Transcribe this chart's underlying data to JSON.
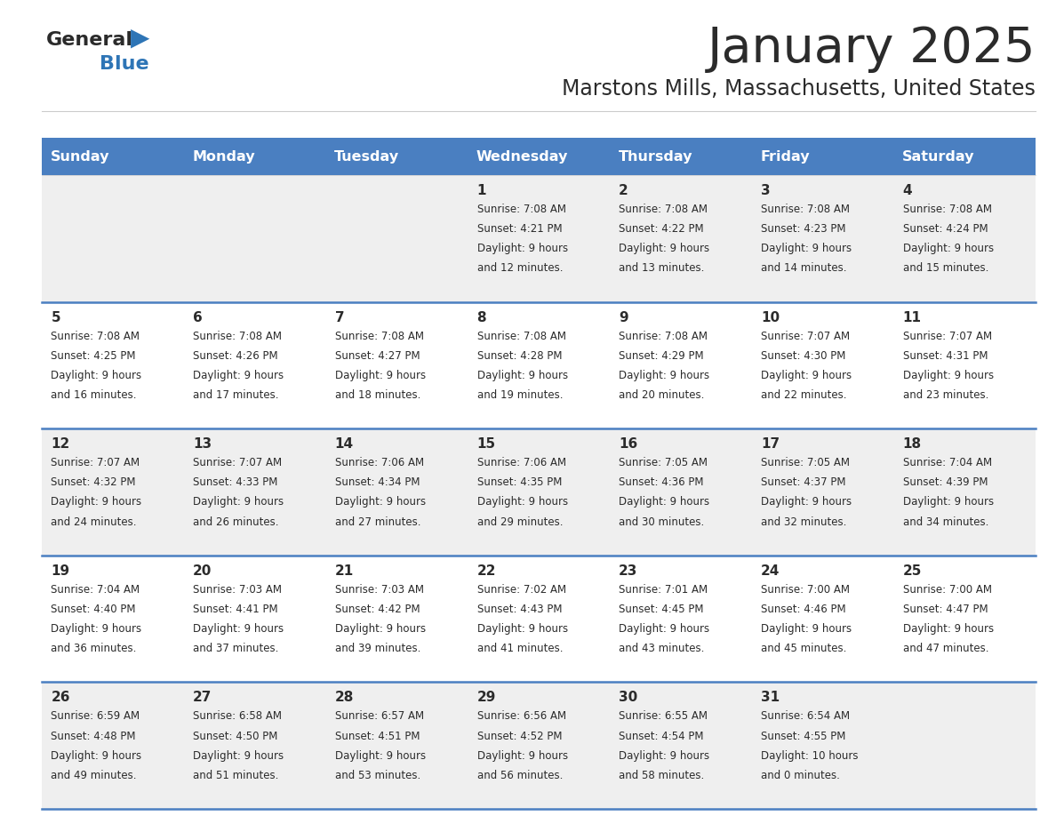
{
  "title": "January 2025",
  "subtitle": "Marstons Mills, Massachusetts, United States",
  "days_of_week": [
    "Sunday",
    "Monday",
    "Tuesday",
    "Wednesday",
    "Thursday",
    "Friday",
    "Saturday"
  ],
  "header_bg": "#4a7fc1",
  "header_text": "#FFFFFF",
  "row_bg_light": "#EFEFEF",
  "row_bg_white": "#FFFFFF",
  "cell_border": "#4a7fc1",
  "title_color": "#2b2b2b",
  "subtitle_color": "#2b2b2b",
  "day_number_color": "#2b2b2b",
  "cell_text_color": "#2b2b2b",
  "logo_general_color": "#2b2b2b",
  "logo_blue_color": "#2E75B6",
  "calendar_data": [
    [
      {
        "day": "",
        "sunrise": "",
        "sunset": "",
        "daylight": ""
      },
      {
        "day": "",
        "sunrise": "",
        "sunset": "",
        "daylight": ""
      },
      {
        "day": "",
        "sunrise": "",
        "sunset": "",
        "daylight": ""
      },
      {
        "day": "1",
        "sunrise": "7:08 AM",
        "sunset": "4:21 PM",
        "daylight": "9 hours",
        "daylight2": "and 12 minutes."
      },
      {
        "day": "2",
        "sunrise": "7:08 AM",
        "sunset": "4:22 PM",
        "daylight": "9 hours",
        "daylight2": "and 13 minutes."
      },
      {
        "day": "3",
        "sunrise": "7:08 AM",
        "sunset": "4:23 PM",
        "daylight": "9 hours",
        "daylight2": "and 14 minutes."
      },
      {
        "day": "4",
        "sunrise": "7:08 AM",
        "sunset": "4:24 PM",
        "daylight": "9 hours",
        "daylight2": "and 15 minutes."
      }
    ],
    [
      {
        "day": "5",
        "sunrise": "7:08 AM",
        "sunset": "4:25 PM",
        "daylight": "9 hours",
        "daylight2": "and 16 minutes."
      },
      {
        "day": "6",
        "sunrise": "7:08 AM",
        "sunset": "4:26 PM",
        "daylight": "9 hours",
        "daylight2": "and 17 minutes."
      },
      {
        "day": "7",
        "sunrise": "7:08 AM",
        "sunset": "4:27 PM",
        "daylight": "9 hours",
        "daylight2": "and 18 minutes."
      },
      {
        "day": "8",
        "sunrise": "7:08 AM",
        "sunset": "4:28 PM",
        "daylight": "9 hours",
        "daylight2": "and 19 minutes."
      },
      {
        "day": "9",
        "sunrise": "7:08 AM",
        "sunset": "4:29 PM",
        "daylight": "9 hours",
        "daylight2": "and 20 minutes."
      },
      {
        "day": "10",
        "sunrise": "7:07 AM",
        "sunset": "4:30 PM",
        "daylight": "9 hours",
        "daylight2": "and 22 minutes."
      },
      {
        "day": "11",
        "sunrise": "7:07 AM",
        "sunset": "4:31 PM",
        "daylight": "9 hours",
        "daylight2": "and 23 minutes."
      }
    ],
    [
      {
        "day": "12",
        "sunrise": "7:07 AM",
        "sunset": "4:32 PM",
        "daylight": "9 hours",
        "daylight2": "and 24 minutes."
      },
      {
        "day": "13",
        "sunrise": "7:07 AM",
        "sunset": "4:33 PM",
        "daylight": "9 hours",
        "daylight2": "and 26 minutes."
      },
      {
        "day": "14",
        "sunrise": "7:06 AM",
        "sunset": "4:34 PM",
        "daylight": "9 hours",
        "daylight2": "and 27 minutes."
      },
      {
        "day": "15",
        "sunrise": "7:06 AM",
        "sunset": "4:35 PM",
        "daylight": "9 hours",
        "daylight2": "and 29 minutes."
      },
      {
        "day": "16",
        "sunrise": "7:05 AM",
        "sunset": "4:36 PM",
        "daylight": "9 hours",
        "daylight2": "and 30 minutes."
      },
      {
        "day": "17",
        "sunrise": "7:05 AM",
        "sunset": "4:37 PM",
        "daylight": "9 hours",
        "daylight2": "and 32 minutes."
      },
      {
        "day": "18",
        "sunrise": "7:04 AM",
        "sunset": "4:39 PM",
        "daylight": "9 hours",
        "daylight2": "and 34 minutes."
      }
    ],
    [
      {
        "day": "19",
        "sunrise": "7:04 AM",
        "sunset": "4:40 PM",
        "daylight": "9 hours",
        "daylight2": "and 36 minutes."
      },
      {
        "day": "20",
        "sunrise": "7:03 AM",
        "sunset": "4:41 PM",
        "daylight": "9 hours",
        "daylight2": "and 37 minutes."
      },
      {
        "day": "21",
        "sunrise": "7:03 AM",
        "sunset": "4:42 PM",
        "daylight": "9 hours",
        "daylight2": "and 39 minutes."
      },
      {
        "day": "22",
        "sunrise": "7:02 AM",
        "sunset": "4:43 PM",
        "daylight": "9 hours",
        "daylight2": "and 41 minutes."
      },
      {
        "day": "23",
        "sunrise": "7:01 AM",
        "sunset": "4:45 PM",
        "daylight": "9 hours",
        "daylight2": "and 43 minutes."
      },
      {
        "day": "24",
        "sunrise": "7:00 AM",
        "sunset": "4:46 PM",
        "daylight": "9 hours",
        "daylight2": "and 45 minutes."
      },
      {
        "day": "25",
        "sunrise": "7:00 AM",
        "sunset": "4:47 PM",
        "daylight": "9 hours",
        "daylight2": "and 47 minutes."
      }
    ],
    [
      {
        "day": "26",
        "sunrise": "6:59 AM",
        "sunset": "4:48 PM",
        "daylight": "9 hours",
        "daylight2": "and 49 minutes."
      },
      {
        "day": "27",
        "sunrise": "6:58 AM",
        "sunset": "4:50 PM",
        "daylight": "9 hours",
        "daylight2": "and 51 minutes."
      },
      {
        "day": "28",
        "sunrise": "6:57 AM",
        "sunset": "4:51 PM",
        "daylight": "9 hours",
        "daylight2": "and 53 minutes."
      },
      {
        "day": "29",
        "sunrise": "6:56 AM",
        "sunset": "4:52 PM",
        "daylight": "9 hours",
        "daylight2": "and 56 minutes."
      },
      {
        "day": "30",
        "sunrise": "6:55 AM",
        "sunset": "4:54 PM",
        "daylight": "9 hours",
        "daylight2": "and 58 minutes."
      },
      {
        "day": "31",
        "sunrise": "6:54 AM",
        "sunset": "4:55 PM",
        "daylight": "10 hours",
        "daylight2": "and 0 minutes."
      },
      {
        "day": "",
        "sunrise": "",
        "sunset": "",
        "daylight": "",
        "daylight2": ""
      }
    ]
  ]
}
